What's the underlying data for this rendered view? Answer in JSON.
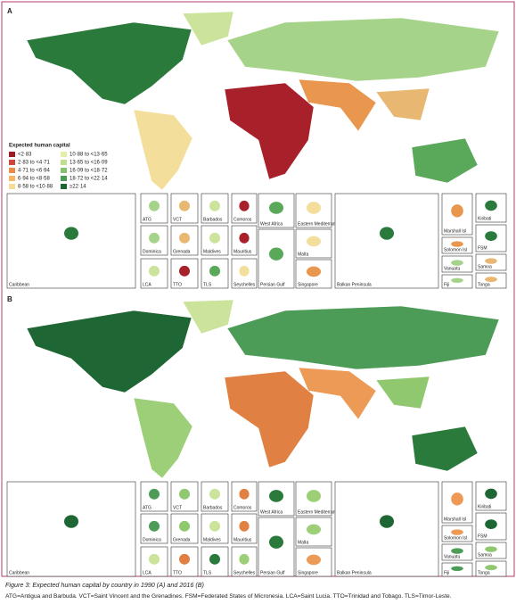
{
  "panels": [
    {
      "label": "A"
    },
    {
      "label": "B"
    }
  ],
  "legend": {
    "title": "Expected human capital",
    "items": [
      {
        "label": "<2·83",
        "color": "#9e1b24"
      },
      {
        "label": "2·83 to <4·71",
        "color": "#d2453a"
      },
      {
        "label": "4·71 to <6·94",
        "color": "#ec8a4c"
      },
      {
        "label": "6·94 to <8·58",
        "color": "#f6b668"
      },
      {
        "label": "8·58 to <10·88",
        "color": "#f7dc98"
      },
      {
        "label": "10·88 to <13·65",
        "color": "#e4efa6"
      },
      {
        "label": "13·65 to <16·09",
        "color": "#bfe08e"
      },
      {
        "label": "16·09 to <18·72",
        "color": "#86c371"
      },
      {
        "label": "18·72 to <22·14",
        "color": "#4c9c57"
      },
      {
        "label": "≥22·14",
        "color": "#1e6634"
      }
    ]
  },
  "insets": [
    "Caribbean",
    "ATG",
    "VCT",
    "Barbados",
    "Comoros",
    "West Africa",
    "Eastern Mediterranean",
    "Marshall Isl",
    "Kiribati",
    "Dominica",
    "Grenada",
    "Maldives",
    "Mauritius",
    "Persian Gulf",
    "Malta",
    "Solomon Isl",
    "FSM",
    "Vanuatu",
    "Samoa",
    "LCA",
    "TTO",
    "TLS",
    "Seychelles",
    "Singapore",
    "Balkan Peninsula",
    "Fiji",
    "Tonga"
  ],
  "caption": {
    "title": "Figure 3: Expected human capital by country in 1990 (A) and 2016 (B)",
    "note": "ATG=Antigua and Barbuda. VCT=Saint Vincent and the Grenadines. FSM=Federated States of Micronesia. LCA=Saint Lucia. TTO=Trinidad and Tobago. TLS=Timor-Leste."
  }
}
